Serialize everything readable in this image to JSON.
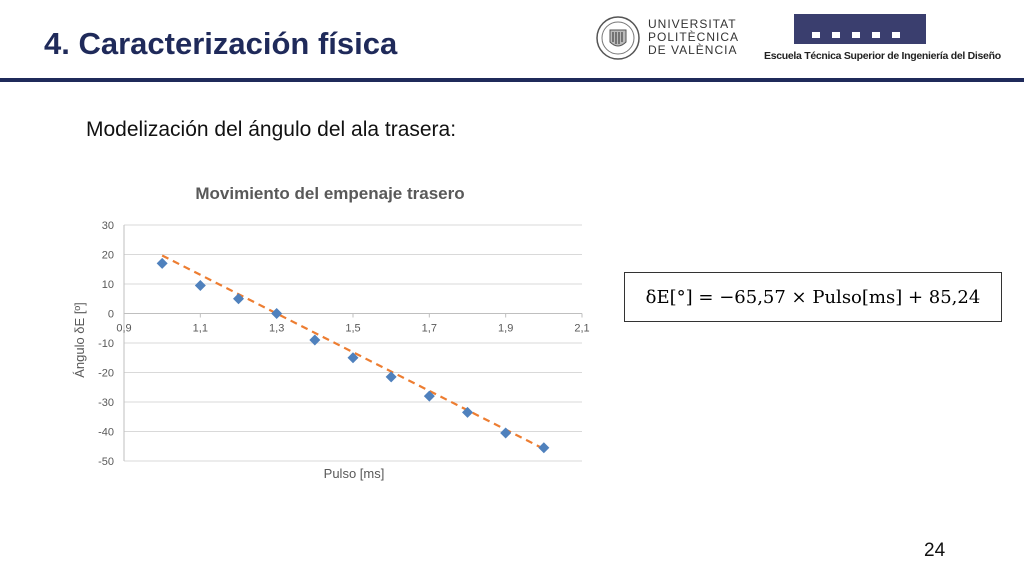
{
  "slide": {
    "title": "4. Caracterización física",
    "subtitle": "Modelización del ángulo del ala trasera:",
    "page_number": "24"
  },
  "logos": {
    "upv": {
      "line1": "UNIVERSITAT",
      "line2": "POLITÈCNICA",
      "line3": "DE VALÈNCIA"
    },
    "etsid": {
      "text": "Escuela Técnica Superior de Ingeniería del Diseño"
    }
  },
  "formula": {
    "text": "δE[°] = −65,57 × Pulso[ms] + 85,24"
  },
  "colors": {
    "title": "#1f2a5a",
    "marker": "#4f81bd",
    "trend": "#ed7d31",
    "grid": "#d9d9d9",
    "axis_text": "#595959"
  },
  "chart_data": {
    "type": "scatter",
    "title": "Movimiento del empenaje trasero",
    "xlabel": "Pulso [ms]",
    "ylabel": "Ángulo δE [º]",
    "xlim": [
      0.9,
      2.1
    ],
    "ylim": [
      -50,
      30
    ],
    "x_ticks": [
      "0,9",
      "1,1",
      "1,3",
      "1,5",
      "1,7",
      "1,9",
      "2,1"
    ],
    "y_ticks": [
      "30",
      "20",
      "10",
      "0",
      "-10",
      "-20",
      "-30",
      "-40",
      "-50"
    ],
    "grid": true,
    "legend": "none",
    "series": [
      {
        "x": [
          1.0,
          1.1,
          1.2,
          1.3,
          1.4,
          1.5,
          1.6,
          1.7,
          1.8,
          1.9,
          2.0
        ],
        "y": [
          17,
          9.5,
          5,
          0,
          -9,
          -15,
          -21.5,
          -28,
          -33.5,
          -40.5,
          -45.5
        ]
      }
    ],
    "trendline": {
      "slope": -65.57,
      "intercept": 85.24,
      "style": "dashed"
    }
  }
}
